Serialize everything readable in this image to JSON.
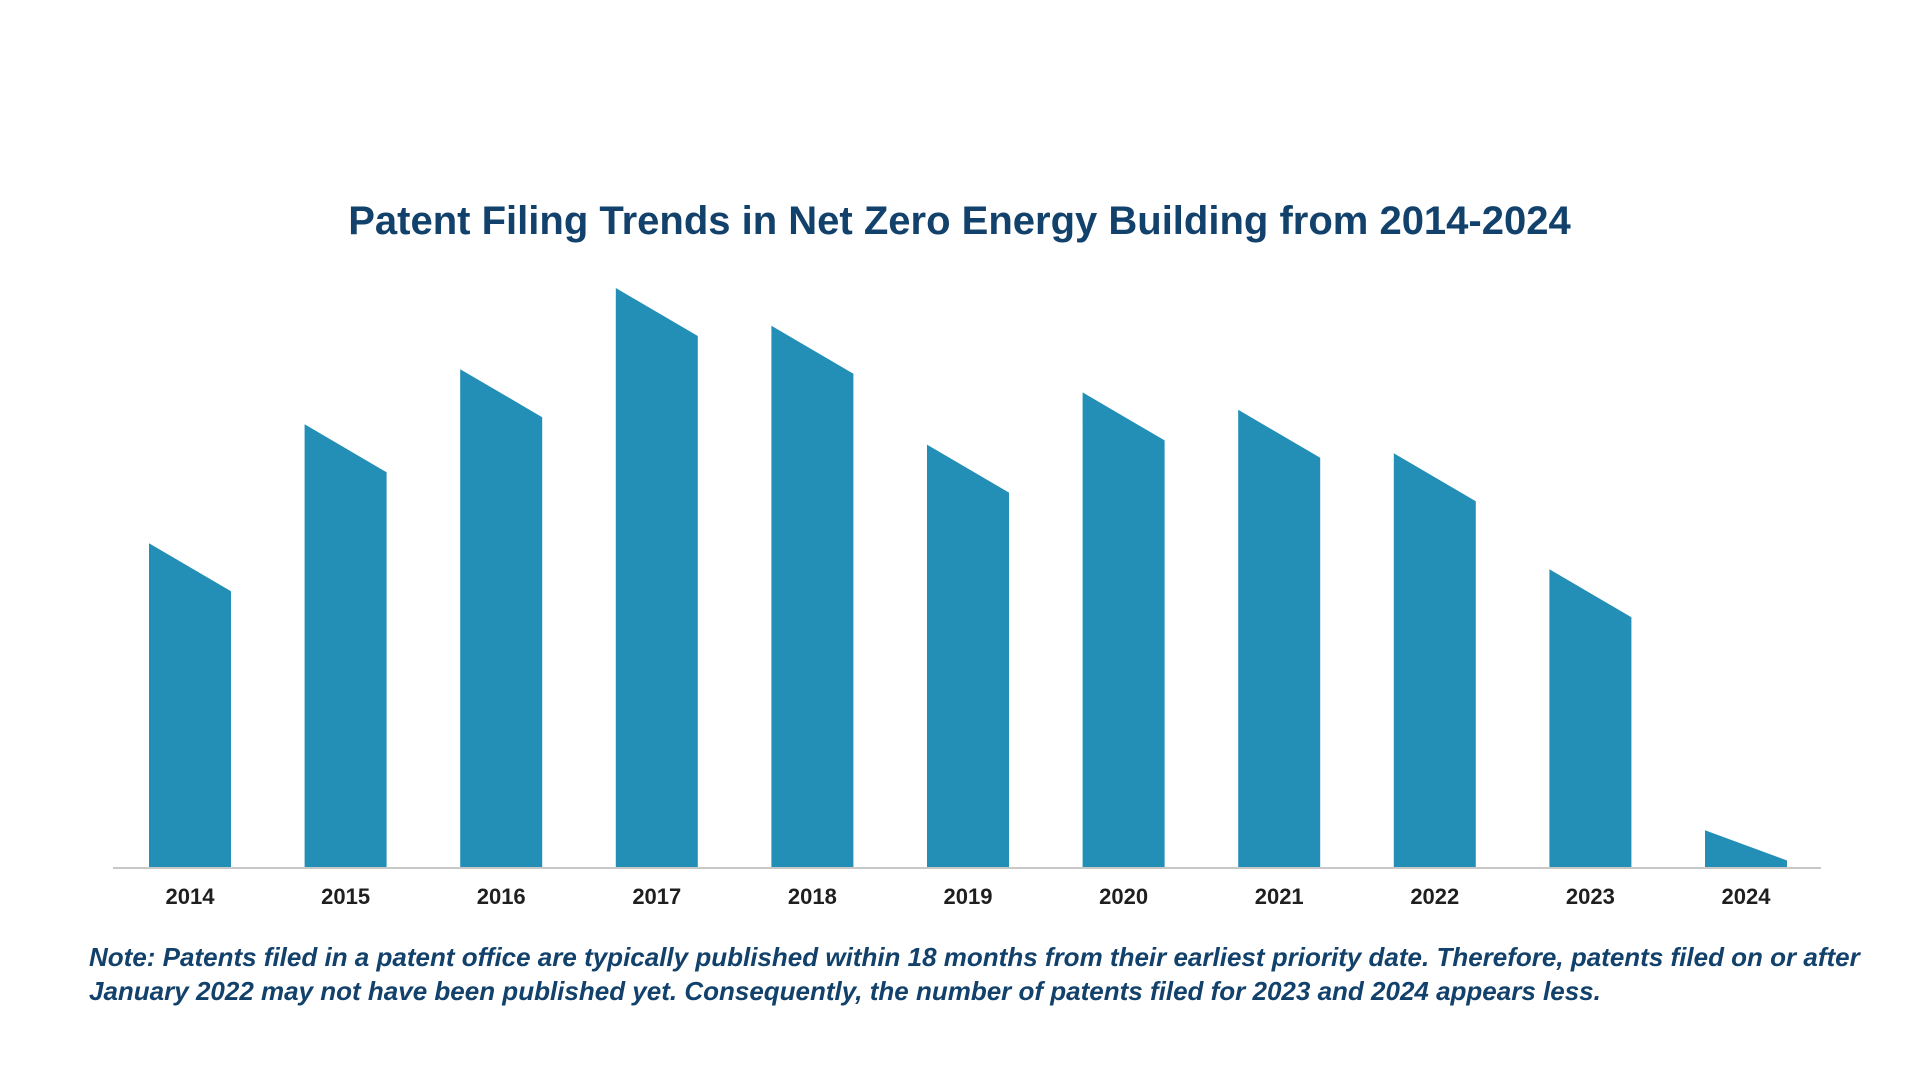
{
  "chart_data": {
    "type": "bar",
    "title": "Patent Filing Trends in Net Zero Energy Building from 2014-2024",
    "xlabel": "",
    "ylabel": "",
    "categories": [
      "2014",
      "2015",
      "2016",
      "2017",
      "2018",
      "2019",
      "2020",
      "2021",
      "2022",
      "2023",
      "2024"
    ],
    "values": [
      56,
      76.5,
      86,
      100,
      93.5,
      73,
      82,
      79,
      71.5,
      51.5,
      6.5
    ],
    "ylim": [
      0,
      100
    ],
    "grid": false,
    "legend": "none",
    "bar_color": "#238fb7",
    "axis_color": "#c8c8c8"
  },
  "note": "Note: Patents filed in a patent office are typically published within 18 months from their earliest priority date. Therefore, patents filed on or after January 2022 may not have been published yet. Consequently, the number of patents filed for 2023 and 2024 appears less."
}
